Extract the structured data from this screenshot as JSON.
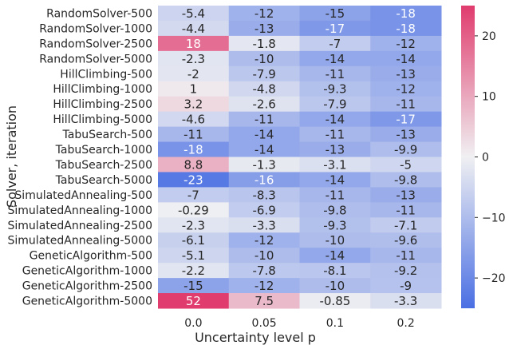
{
  "chart_data": {
    "type": "heatmap",
    "title": "",
    "xlabel": "Uncertainty level p",
    "ylabel": "Solver, iteration",
    "x": [
      "0.0",
      "0.05",
      "0.1",
      "0.2"
    ],
    "y": [
      "RandomSolver-500",
      "RandomSolver-1000",
      "RandomSolver-2500",
      "RandomSolver-5000",
      "HillClimbing-500",
      "HillClimbing-1000",
      "HillClimbing-2500",
      "HillClimbing-5000",
      "TabuSearch-500",
      "TabuSearch-1000",
      "TabuSearch-2500",
      "TabuSearch-5000",
      "SimulatedAnnealing-500",
      "SimulatedAnnealing-1000",
      "SimulatedAnnealing-2500",
      "SimulatedAnnealing-5000",
      "GeneticAlgorithm-500",
      "GeneticAlgorithm-1000",
      "GeneticAlgorithm-2500",
      "GeneticAlgorithm-5000"
    ],
    "values": [
      [
        -5.4,
        -12,
        -15,
        -18
      ],
      [
        -4.4,
        -13,
        -17,
        -18
      ],
      [
        18,
        -1.8,
        -7,
        -12
      ],
      [
        -2.3,
        -10,
        -14,
        -14
      ],
      [
        -2,
        -7.9,
        -11,
        -13
      ],
      [
        1,
        -4.8,
        -9.3,
        -12
      ],
      [
        3.2,
        -2.6,
        -7.9,
        -11
      ],
      [
        -4.6,
        -11,
        -14,
        -17
      ],
      [
        -11,
        -14,
        -11,
        -13
      ],
      [
        -18,
        -14,
        -13,
        -9.9
      ],
      [
        8.8,
        -1.3,
        -3.1,
        -5
      ],
      [
        -23,
        -16,
        -14,
        -9.8
      ],
      [
        -7,
        -8.3,
        -11,
        -13
      ],
      [
        -0.29,
        -6.9,
        -9.8,
        -11
      ],
      [
        -2.3,
        -3.3,
        -9.3,
        -7.1
      ],
      [
        -6.1,
        -12,
        -10,
        -9.6
      ],
      [
        -5.1,
        -10,
        -14,
        -11
      ],
      [
        -2.2,
        -7.8,
        -8.1,
        -9.2
      ],
      [
        -15,
        -12,
        -10,
        -9
      ],
      [
        52,
        7.5,
        -0.85,
        -3.3
      ]
    ],
    "labels": [
      [
        "-5.4",
        "-12",
        "-15",
        "-18"
      ],
      [
        "-4.4",
        "-13",
        "-17",
        "-18"
      ],
      [
        "18",
        "-1.8",
        "-7",
        "-12"
      ],
      [
        "-2.3",
        "-10",
        "-14",
        "-14"
      ],
      [
        "-2",
        "-7.9",
        "-11",
        "-13"
      ],
      [
        "1",
        "-4.8",
        "-9.3",
        "-12"
      ],
      [
        "3.2",
        "-2.6",
        "-7.9",
        "-11"
      ],
      [
        "-4.6",
        "-11",
        "-14",
        "-17"
      ],
      [
        "-11",
        "-14",
        "-11",
        "-13"
      ],
      [
        "-18",
        "-14",
        "-13",
        "-9.9"
      ],
      [
        "8.8",
        "-1.3",
        "-3.1",
        "-5"
      ],
      [
        "-23",
        "-16",
        "-14",
        "-9.8"
      ],
      [
        "-7",
        "-8.3",
        "-11",
        "-13"
      ],
      [
        "-0.29",
        "-6.9",
        "-9.8",
        "-11"
      ],
      [
        "-2.3",
        "-3.3",
        "-9.3",
        "-7.1"
      ],
      [
        "-6.1",
        "-12",
        "-10",
        "-9.6"
      ],
      [
        "-5.1",
        "-10",
        "-14",
        "-11"
      ],
      [
        "-2.2",
        "-7.8",
        "-8.1",
        "-9.2"
      ],
      [
        "-15",
        "-12",
        "-10",
        "-9"
      ],
      [
        "52",
        "7.5",
        "-0.85",
        "-3.3"
      ]
    ],
    "color_range": [
      -25,
      25
    ],
    "colorbar_ticks": [
      20,
      10,
      0,
      -10,
      -20
    ],
    "colorbar_tick_labels": [
      "20",
      "10",
      "0",
      "−10",
      "−20"
    ],
    "colors": {
      "low": "#4a6fe3",
      "mid": "#f0f0f2",
      "high": "#e03c6e"
    },
    "grid": false,
    "colorbar": "right"
  }
}
